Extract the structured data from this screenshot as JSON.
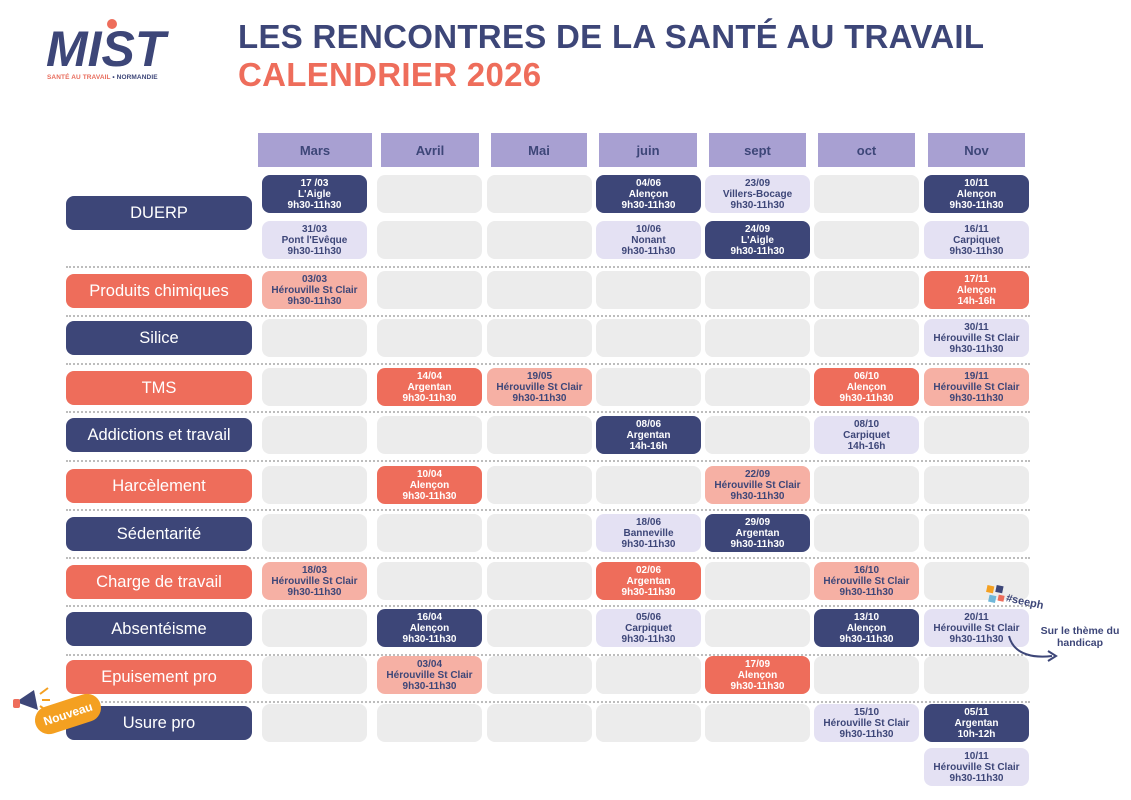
{
  "logo": {
    "wordmark": "MIST",
    "tagline_main": "SANTÉ AU TRAVAIL",
    "tagline_sep": " • ",
    "tagline_region": "NORMANDIE"
  },
  "header": {
    "title": "LES RENCONTRES DE LA SANTÉ AU TRAVAIL",
    "subtitle": "CALENDRIER 2026"
  },
  "months": [
    "Mars",
    "Avril",
    "Mai",
    "juin",
    "sept",
    "oct",
    "Nov"
  ],
  "themes": [
    "DUERP",
    "Produits chimiques",
    "Silice",
    "TMS",
    "Addictions et travail",
    "Harcèlement",
    "Sédentarité",
    "Charge de travail",
    "Absentéisme",
    "Epuisement pro",
    "Usure pro"
  ],
  "events": [
    {
      "theme": "DUERP",
      "month": "Mars",
      "lines": [
        "17 /03",
        "L'Aigle",
        "9h30-11h30"
      ],
      "style": "navy"
    },
    {
      "theme": "DUERP",
      "month": "Mars",
      "lines": [
        "31/03",
        "Pont l'Evêque",
        "9h30-11h30"
      ],
      "style": "lav"
    },
    {
      "theme": "DUERP",
      "month": "juin",
      "lines": [
        "04/06",
        "Alençon",
        "9h30-11h30"
      ],
      "style": "navy"
    },
    {
      "theme": "DUERP",
      "month": "juin",
      "lines": [
        "10/06",
        "Nonant",
        "9h30-11h30"
      ],
      "style": "lav"
    },
    {
      "theme": "DUERP",
      "month": "sept",
      "lines": [
        "23/09",
        "Villers-Bocage",
        "9h30-11h30"
      ],
      "style": "lav"
    },
    {
      "theme": "DUERP",
      "month": "sept",
      "lines": [
        "24/09",
        "L'Aigle",
        "9h30-11h30"
      ],
      "style": "navy"
    },
    {
      "theme": "DUERP",
      "month": "Nov",
      "lines": [
        "10/11",
        "Alençon",
        "9h30-11h30"
      ],
      "style": "navy"
    },
    {
      "theme": "DUERP",
      "month": "Nov",
      "lines": [
        "16/11",
        "Carpiquet",
        "9h30-11h30"
      ],
      "style": "lav"
    },
    {
      "theme": "Produits chimiques",
      "month": "Mars",
      "lines": [
        "03/03",
        "Hérouville St Clair",
        "9h30-11h30"
      ],
      "style": "pink"
    },
    {
      "theme": "Produits chimiques",
      "month": "Nov",
      "lines": [
        "17/11",
        "Alençon",
        "14h-16h"
      ],
      "style": "coral"
    },
    {
      "theme": "Silice",
      "month": "Nov",
      "lines": [
        "30/11",
        "Hérouville St Clair",
        "9h30-11h30"
      ],
      "style": "lav"
    },
    {
      "theme": "TMS",
      "month": "Avril",
      "lines": [
        "14/04",
        "Argentan",
        "9h30-11h30"
      ],
      "style": "coral"
    },
    {
      "theme": "TMS",
      "month": "Mai",
      "lines": [
        "19/05",
        "Hérouville St Clair",
        "9h30-11h30"
      ],
      "style": "pink"
    },
    {
      "theme": "TMS",
      "month": "oct",
      "lines": [
        "06/10",
        "Alençon",
        "9h30-11h30"
      ],
      "style": "coral"
    },
    {
      "theme": "TMS",
      "month": "Nov",
      "lines": [
        "19/11",
        "Hérouville St Clair",
        "9h30-11h30"
      ],
      "style": "pink"
    },
    {
      "theme": "Addictions et travail",
      "month": "juin",
      "lines": [
        "08/06",
        "Argentan",
        "14h-16h"
      ],
      "style": "navy"
    },
    {
      "theme": "Addictions et travail",
      "month": "oct",
      "lines": [
        "08/10",
        "Carpiquet",
        "14h-16h"
      ],
      "style": "lav"
    },
    {
      "theme": "Harcèlement",
      "month": "Avril",
      "lines": [
        "10/04",
        "Alençon",
        "9h30-11h30"
      ],
      "style": "coral"
    },
    {
      "theme": "Harcèlement",
      "month": "sept",
      "lines": [
        "22/09",
        "Hérouville St Clair",
        "9h30-11h30"
      ],
      "style": "pink"
    },
    {
      "theme": "Sédentarité",
      "month": "juin",
      "lines": [
        "18/06",
        "Banneville",
        "9h30-11h30"
      ],
      "style": "lav"
    },
    {
      "theme": "Sédentarité",
      "month": "sept",
      "lines": [
        "29/09",
        "Argentan",
        "9h30-11h30"
      ],
      "style": "navy"
    },
    {
      "theme": "Charge de travail",
      "month": "Mars",
      "lines": [
        "18/03",
        "Hérouville St Clair",
        "9h30-11h30"
      ],
      "style": "pink"
    },
    {
      "theme": "Charge de travail",
      "month": "juin",
      "lines": [
        "02/06",
        "Argentan",
        "9h30-11h30"
      ],
      "style": "coral"
    },
    {
      "theme": "Charge de travail",
      "month": "oct",
      "lines": [
        "16/10",
        "Hérouville St Clair",
        "9h30-11h30"
      ],
      "style": "pink"
    },
    {
      "theme": "Absentéisme",
      "month": "Avril",
      "lines": [
        "16/04",
        "Alençon",
        "9h30-11h30"
      ],
      "style": "navy"
    },
    {
      "theme": "Absentéisme",
      "month": "juin",
      "lines": [
        "05/06",
        "Carpiquet",
        "9h30-11h30"
      ],
      "style": "lav"
    },
    {
      "theme": "Absentéisme",
      "month": "oct",
      "lines": [
        "13/10",
        "Alençon",
        "9h30-11h30"
      ],
      "style": "navy"
    },
    {
      "theme": "Absentéisme",
      "month": "Nov",
      "lines": [
        "20/11",
        "Hérouville St Clair",
        "9h30-11h30"
      ],
      "style": "lav"
    },
    {
      "theme": "Epuisement pro",
      "month": "Avril",
      "lines": [
        "03/04",
        "Hérouville St Clair",
        "9h30-11h30"
      ],
      "style": "pink"
    },
    {
      "theme": "Epuisement pro",
      "month": "sept",
      "lines": [
        "17/09",
        "Alençon",
        "9h30-11h30"
      ],
      "style": "coral"
    },
    {
      "theme": "Usure pro",
      "month": "oct",
      "lines": [
        "15/10",
        "Hérouville St Clair",
        "9h30-11h30"
      ],
      "style": "lav"
    },
    {
      "theme": "Usure pro",
      "month": "Nov",
      "lines": [
        "05/11",
        "Argentan",
        "10h-12h"
      ],
      "style": "navy"
    },
    {
      "theme": "Usure pro",
      "month": "Nov",
      "lines": [
        "10/11",
        "Hérouville St Clair",
        "9h30-11h30"
      ],
      "style": "lav"
    }
  ],
  "badge": {
    "label": "Nouveau"
  },
  "seeph": {
    "label": "#seeph",
    "note": "Sur le thème du handicap"
  },
  "colors": {
    "navy": "#3d4678",
    "coral": "#ee6d5b",
    "lavender": "#a8a0d2",
    "light_lavender": "#e4e1f3",
    "pink": "#f6b0a4",
    "grey": "#ececec",
    "orange": "#f4a021"
  }
}
